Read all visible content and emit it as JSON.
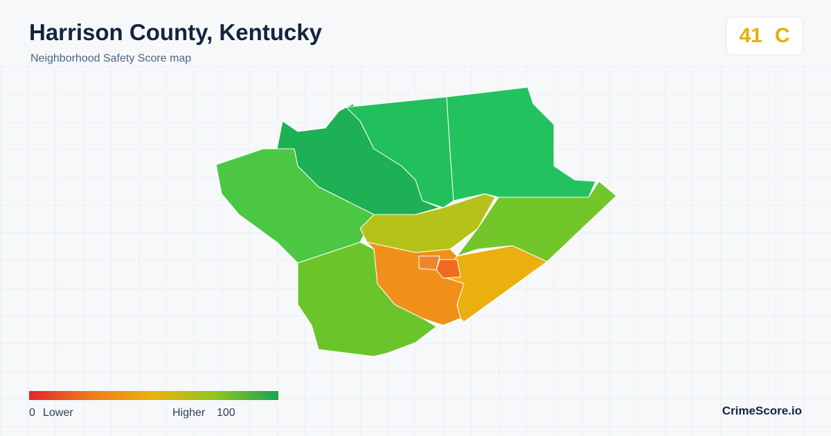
{
  "header": {
    "title": "Harrison County, Kentucky",
    "subtitle": "Neighborhood Safety Score map"
  },
  "score": {
    "value": 41,
    "grade": "C"
  },
  "legend": {
    "min": 0,
    "min_label": "Lower",
    "max_label": "Higher",
    "max": 100
  },
  "brand": "CrimeScore.io"
}
